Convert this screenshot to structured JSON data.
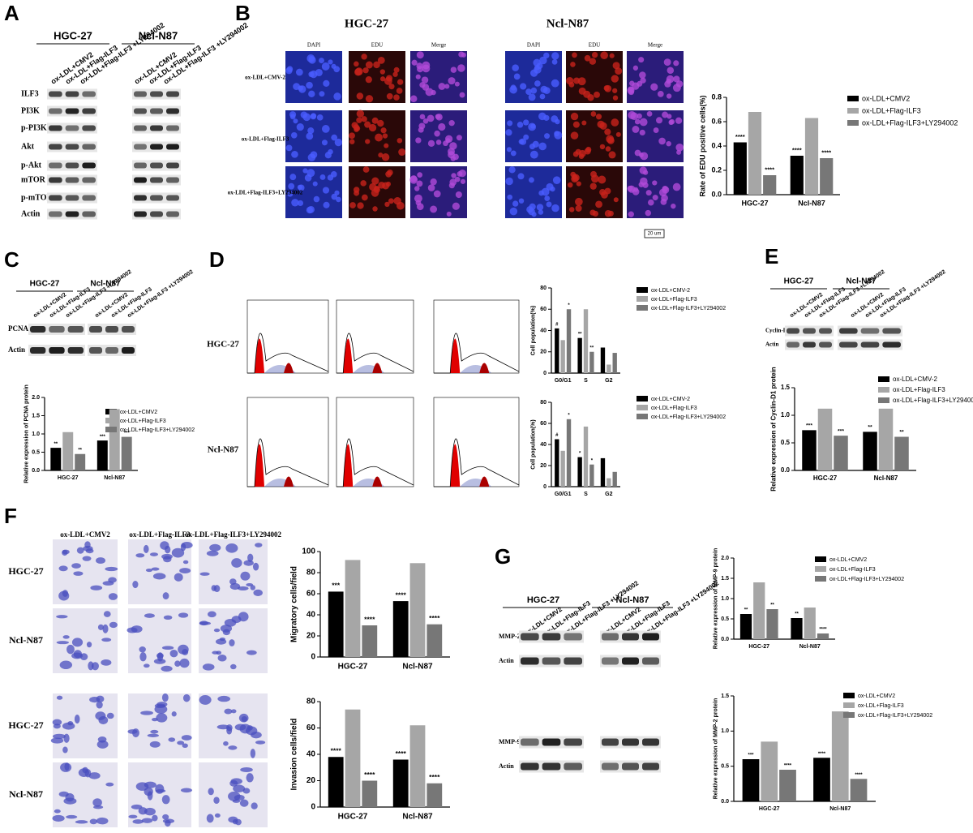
{
  "panel_a": {
    "letter": "A",
    "groups": [
      "HGC-27",
      "Ncl-N87"
    ],
    "lanes": [
      "ox-LDL+CMV2",
      "ox-LDL+Flag-ILF3",
      "ox-LDL+Flag-ILF3 +LY294002"
    ],
    "proteins": [
      "ILF3",
      "PI3K",
      "p-PI3K",
      "Akt",
      "p-Akt",
      "mTOR",
      "p-mTOR",
      "Actin"
    ]
  },
  "panel_b": {
    "letter": "B",
    "groups": [
      "HGC-27",
      "Ncl-N87"
    ],
    "columns": [
      "DAPI",
      "EDU",
      "Merge"
    ],
    "rows": [
      "ox-LDL+CMV-2",
      "ox-LDL+Flag-ILF3",
      "ox-LDL+Flag-ILF3+LY294002"
    ],
    "scale_bar": "20 um"
  },
  "panel_c": {
    "letter": "C",
    "groups": [
      "HGC-27",
      "Ncl-N87"
    ],
    "lanes": [
      "ox-LDL+CMV2",
      "ox-LDL+Flag-ILF3",
      "ox-LDL+Flag-ILF3 +LY294002"
    ],
    "proteins": [
      "PCNA",
      "Actin"
    ]
  },
  "panel_d": {
    "letter": "D",
    "rows": [
      "HGC-27",
      "Ncl-N87"
    ]
  },
  "panel_e": {
    "letter": "E",
    "groups": [
      "HGC-27",
      "Ncl-N87"
    ],
    "lanes": [
      "ox-LDL+CMV2",
      "ox-LDL+Flag-ILF3",
      "ox-LDL+Flag-ILF3 +LY294002"
    ],
    "proteins": [
      "Cyclin-D1",
      "Actin"
    ]
  },
  "panel_f": {
    "letter": "F",
    "columns": [
      "ox-LDL+CMV2",
      "ox-LDL+Flag-ILF3",
      "ox-LDL+Flag-ILF3+LY294002"
    ],
    "rows": [
      "HGC-27",
      "Ncl-N87",
      "HGC-27",
      "Ncl-N87"
    ]
  },
  "panel_g": {
    "letter": "G",
    "groups": [
      "HGC-27",
      "Ncl-N87"
    ],
    "lanes": [
      "ox-LDL+CMV2",
      "ox-LDL+Flag-ILF3",
      "ox-LDL+Flag-ILF3 +LY294002"
    ],
    "proteins": [
      "MMP-2",
      "Actin",
      "MMP-9",
      "Actin"
    ]
  },
  "chart_data": [
    {
      "type": "bar",
      "ylabel": "Rate of EDU positive cells(%)",
      "categories": [
        "HGC-27",
        "Ncl-N87"
      ],
      "legend": true,
      "ylim": [
        0,
        0.8
      ],
      "yticks": [
        {
          "value": 0,
          "label": "0.0"
        },
        0.2,
        0.4,
        0.6,
        0.8
      ],
      "series": [
        {
          "name": "ox-LDL+CMV2",
          "color": "#000000",
          "values": [
            0.43,
            0.32
          ],
          "significance": [
            "****",
            "****"
          ]
        },
        {
          "name": "ox-LDL+Flag-ILF3",
          "color": "#a6a6a6",
          "values": [
            0.68,
            0.63
          ]
        },
        {
          "name": "ox-LDL+Flag-ILF3+LY294002",
          "color": "#777777",
          "values": [
            0.16,
            0.3
          ],
          "significance": [
            "****",
            "****"
          ]
        }
      ]
    },
    {
      "type": "bar",
      "ylabel": "Relative expression of PCNA protein",
      "categories": [
        "HGC-27",
        "Ncl-N87"
      ],
      "legend": true,
      "ylim": [
        0,
        2.0
      ],
      "yticks": [
        {
          "value": 0,
          "label": "0.0"
        },
        0.5,
        {
          "value": 1,
          "label": "1.0"
        },
        1.5,
        {
          "value": 2,
          "label": "2.0"
        }
      ],
      "series": [
        {
          "name": "ox-LDL+CMV2",
          "color": "#000000",
          "values": [
            0.62,
            0.82
          ],
          "significance": [
            "**",
            "***"
          ]
        },
        {
          "name": "ox-LDL+Flag-ILF3",
          "color": "#a6a6a6",
          "values": [
            1.05,
            1.68
          ]
        },
        {
          "name": "ox-LDL+Flag-ILF3+LY294002",
          "color": "#777777",
          "values": [
            0.45,
            0.92
          ],
          "significance": [
            "**",
            "***"
          ]
        }
      ]
    },
    {
      "type": "bar",
      "ylabel": "Cell population(%)",
      "categories": [
        "G0/G1",
        "S",
        "G2"
      ],
      "legend": true,
      "ylim": [
        0,
        80
      ],
      "yticks": [
        0,
        20,
        40,
        60,
        80
      ],
      "series": [
        {
          "name": "ox-LDL+CMV-2",
          "color": "#000000",
          "values": [
            42,
            33,
            24
          ],
          "significance": [
            "#",
            "**",
            null
          ]
        },
        {
          "name": "ox-LDL+Flag-ILF3",
          "color": "#a6a6a6",
          "values": [
            31,
            60,
            8
          ]
        },
        {
          "name": "ox-LDL+Flag-ILF3+LY294002",
          "color": "#777777",
          "values": [
            60,
            20,
            19
          ],
          "significance": [
            "*",
            "**",
            null
          ]
        }
      ]
    },
    {
      "type": "bar",
      "ylabel": "Cell population(%)",
      "categories": [
        "G0/G1",
        "S",
        "G2"
      ],
      "legend": true,
      "ylim": [
        0,
        80
      ],
      "yticks": [
        0,
        20,
        40,
        60,
        80
      ],
      "series": [
        {
          "name": "ox-LDL+CMV-2",
          "color": "#000000",
          "values": [
            45,
            28,
            27
          ],
          "significance": [
            "#",
            "*",
            null
          ]
        },
        {
          "name": "ox-LDL+Flag-ILF3",
          "color": "#a6a6a6",
          "values": [
            34,
            57,
            8
          ]
        },
        {
          "name": "ox-LDL+Flag-ILF3+LY294002",
          "color": "#777777",
          "values": [
            64,
            21,
            14
          ],
          "significance": [
            "*",
            "*",
            null
          ]
        }
      ]
    },
    {
      "type": "bar",
      "ylabel": "Relative expression of Cyclin-D1 protein",
      "categories": [
        "HGC-27",
        "Ncl-N87"
      ],
      "legend": true,
      "ylim": [
        0,
        1.5
      ],
      "yticks": [
        {
          "value": 0,
          "label": "0.0"
        },
        0.5,
        {
          "value": 1,
          "label": "1.0"
        },
        1.5
      ],
      "series": [
        {
          "name": "ox-LDL+CMV-2",
          "color": "#000000",
          "values": [
            0.73,
            0.7
          ],
          "significance": [
            "***",
            "**"
          ]
        },
        {
          "name": "ox-LDL+Flag-ILF3",
          "color": "#a6a6a6",
          "values": [
            1.12,
            1.12
          ]
        },
        {
          "name": "ox-LDL+Flag-ILF3+LY294002",
          "color": "#777777",
          "values": [
            0.63,
            0.61
          ],
          "significance": [
            "***",
            "**"
          ]
        }
      ]
    },
    {
      "type": "bar",
      "ylabel": "Migratory cells/field",
      "categories": [
        "HGC-27",
        "Ncl-N87"
      ],
      "ylim": [
        0,
        100
      ],
      "yticks": [
        0,
        20,
        40,
        60,
        80,
        100
      ],
      "series": [
        {
          "name": "ox-LDL+CMV2",
          "color": "#000000",
          "values": [
            62,
            53
          ],
          "significance": [
            "***",
            "****"
          ]
        },
        {
          "name": "ox-LDL+Flag-ILF3",
          "color": "#a6a6a6",
          "values": [
            92,
            89
          ]
        },
        {
          "name": "ox-LDL+Flag-ILF3+LY294002",
          "color": "#777777",
          "values": [
            30,
            31
          ],
          "significance": [
            "****",
            "****"
          ]
        }
      ]
    },
    {
      "type": "bar",
      "ylabel": "Invasion cells/field",
      "categories": [
        "HGC-27",
        "Ncl-N87"
      ],
      "ylim": [
        0,
        80
      ],
      "yticks": [
        0,
        20,
        40,
        60,
        80
      ],
      "series": [
        {
          "name": "ox-LDL+CMV2",
          "color": "#000000",
          "values": [
            38,
            36
          ],
          "significance": [
            "****",
            "****"
          ]
        },
        {
          "name": "ox-LDL+Flag-ILF3",
          "color": "#a6a6a6",
          "values": [
            74,
            62
          ]
        },
        {
          "name": "ox-LDL+Flag-ILF3+LY294002",
          "color": "#777777",
          "values": [
            20,
            18
          ],
          "significance": [
            "****",
            "****"
          ]
        }
      ]
    },
    {
      "type": "bar",
      "ylabel": "Relative expression of MMP-9 protein",
      "categories": [
        "HGC-27",
        "Ncl-N87"
      ],
      "legend": true,
      "ylim": [
        0,
        2.0
      ],
      "yticks": [
        {
          "value": 0,
          "label": "0.0"
        },
        0.5,
        {
          "value": 1,
          "label": "1.0"
        },
        1.5,
        {
          "value": 2,
          "label": "2.0"
        }
      ],
      "series": [
        {
          "name": "ox-LDL+CMV2",
          "color": "#000000",
          "values": [
            0.62,
            0.52
          ],
          "significance": [
            "**",
            "**"
          ]
        },
        {
          "name": "ox-LDL+Flag-ILF3",
          "color": "#a6a6a6",
          "values": [
            1.4,
            0.78
          ]
        },
        {
          "name": "ox-LDL+Flag-ILF3+LY294002",
          "color": "#777777",
          "values": [
            0.74,
            0.14
          ],
          "significance": [
            "**",
            "****"
          ]
        }
      ]
    },
    {
      "type": "bar",
      "ylabel": "Relative expression of MMP-2 protein",
      "categories": [
        "HGC-27",
        "Ncl-N87"
      ],
      "legend": true,
      "ylim": [
        0,
        1.5
      ],
      "yticks": [
        {
          "value": 0,
          "label": "0.0"
        },
        0.5,
        {
          "value": 1,
          "label": "1.0"
        },
        1.5
      ],
      "series": [
        {
          "name": "ox-LDL+CMV2",
          "color": "#000000",
          "values": [
            0.6,
            0.62
          ],
          "significance": [
            "***",
            "****"
          ]
        },
        {
          "name": "ox-LDL+Flag-ILF3",
          "color": "#a6a6a6",
          "values": [
            0.85,
            1.28
          ]
        },
        {
          "name": "ox-LDL+Flag-ILF3+LY294002",
          "color": "#777777",
          "values": [
            0.45,
            0.32
          ],
          "significance": [
            "****",
            "****"
          ]
        }
      ]
    }
  ]
}
